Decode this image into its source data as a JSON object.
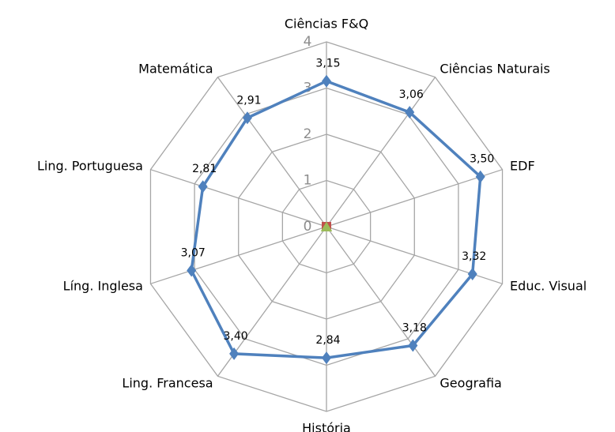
{
  "chart_data": {
    "type": "radar",
    "categories": [
      "Ciências F&Q",
      "Ciências Naturais",
      "EDF",
      "Educ. Visual",
      "Geografia",
      "História",
      "Ling. Francesa",
      "Líng. Inglesa",
      "Ling. Portuguesa",
      "Matemática"
    ],
    "series": [
      {
        "color": "#4f81bd",
        "marker": "diamond",
        "values": [
          3.15,
          3.06,
          3.5,
          3.32,
          3.18,
          2.84,
          3.4,
          3.07,
          2.81,
          2.91
        ],
        "value_labels": [
          "3,15",
          "3,06",
          "3,50",
          "3,32",
          "3,18",
          "2,84",
          "3,40",
          "3,07",
          "2,81",
          "2,91"
        ]
      },
      {
        "color": "#c0504d",
        "marker": "square",
        "values": [
          0,
          0,
          0,
          0,
          0,
          0,
          0,
          0,
          0,
          0
        ]
      },
      {
        "color": "#9bbb59",
        "marker": "triangle",
        "values": [
          0,
          0,
          0,
          0,
          0,
          0,
          0,
          0,
          0,
          0
        ]
      }
    ],
    "rlim": [
      0,
      4
    ],
    "rticks": [
      0,
      1,
      2,
      3,
      4
    ],
    "grid": true
  }
}
